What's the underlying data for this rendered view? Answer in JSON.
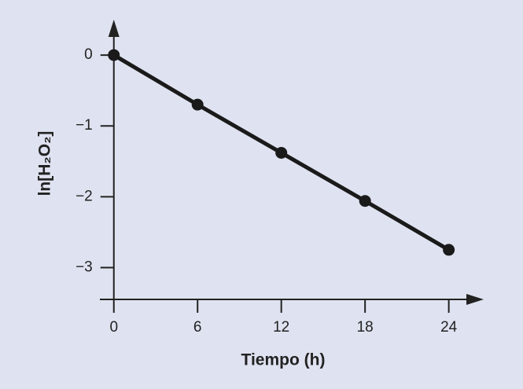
{
  "chart_data": {
    "type": "line",
    "x_label": "Tiempo (h)",
    "y_label": "ln[H₂O₂]",
    "x": [
      0,
      6,
      12,
      18,
      24
    ],
    "series": [
      {
        "color": "#1a1a1a",
        "values": [
          0,
          -0.7,
          -1.38,
          -2.06,
          -2.75
        ]
      }
    ],
    "xlim": [
      -1,
      26.5
    ],
    "ylim": [
      -3.45,
      0.5
    ],
    "xticks": [
      0,
      6,
      12,
      18,
      24
    ],
    "yticks": [
      0,
      {
        "value": -1,
        "label": "−1"
      },
      {
        "value": -2,
        "label": "−2"
      },
      {
        "value": -3,
        "label": "−3"
      }
    ]
  }
}
